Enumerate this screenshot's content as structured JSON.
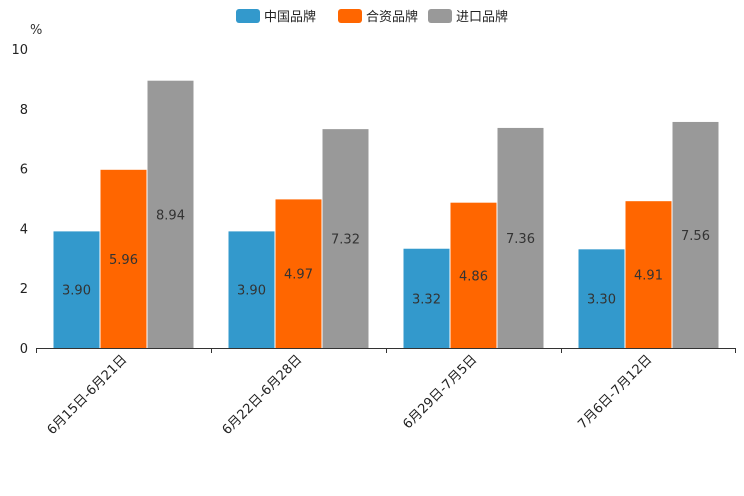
{
  "chart_data": {
    "type": "bar",
    "title": "",
    "xlabel": "",
    "ylabel": "%",
    "ylim": [
      0,
      10
    ],
    "yticks": [
      0,
      2,
      4,
      6,
      8,
      10
    ],
    "grid": false,
    "legend_position": "top-center",
    "categories": [
      "6月15日-6月21日",
      "6月22日-6月28日",
      "6月29日-7月5日",
      "7月6日-7月12日"
    ],
    "series": [
      {
        "name": "中国品牌",
        "color": "#3399cc",
        "values": [
          3.9,
          3.9,
          3.32,
          3.3
        ],
        "labels": [
          "3.90",
          "3.90",
          "3.32",
          "3.30"
        ]
      },
      {
        "name": "合资品牌",
        "color": "#ff6600",
        "values": [
          5.96,
          4.97,
          4.86,
          4.91
        ],
        "labels": [
          "5.96",
          "4.97",
          "4.86",
          "4.91"
        ]
      },
      {
        "name": "进口品牌",
        "color": "#999999",
        "values": [
          8.94,
          7.32,
          7.36,
          7.56
        ],
        "labels": [
          "8.94",
          "7.32",
          "7.36",
          "7.56"
        ]
      }
    ]
  }
}
